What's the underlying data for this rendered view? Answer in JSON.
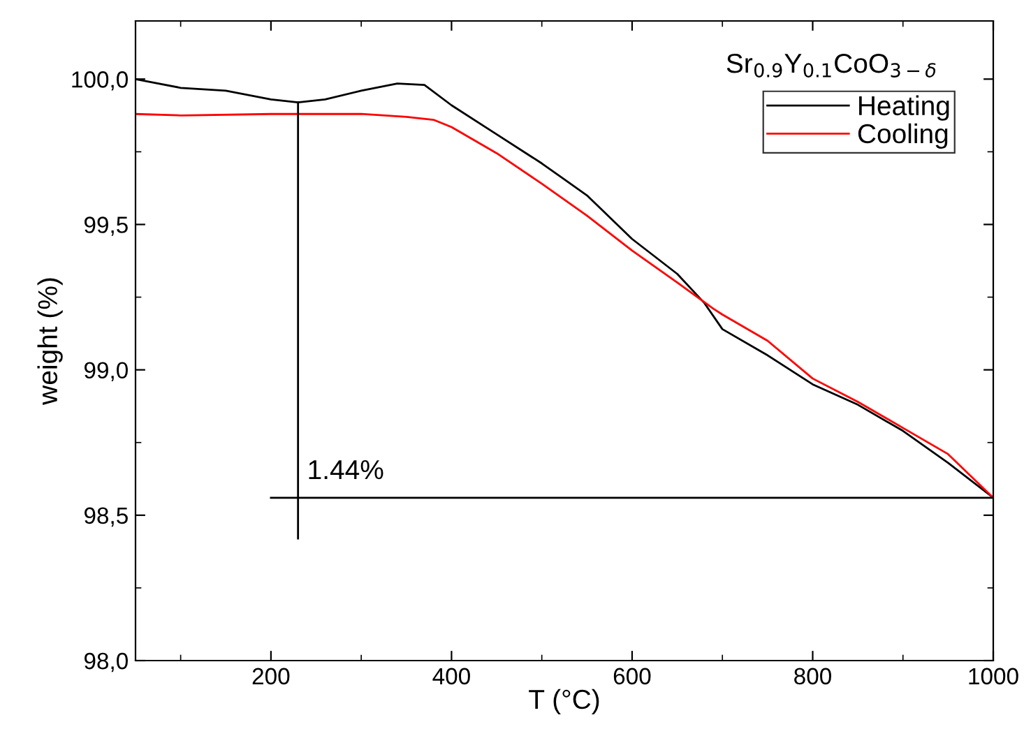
{
  "chart_data": {
    "type": "line",
    "title": "Sr$_{0.9}$Y$_{0.1}$CoO$_{3−δ}$",
    "xlabel": "T (°C)",
    "ylabel": "weight (%)",
    "xlim": [
      50,
      1000
    ],
    "ylim": [
      98.0,
      100.2
    ],
    "xticks": [
      200,
      400,
      600,
      800,
      1000
    ],
    "yticks": [
      {
        "value": 98.0,
        "label": "98,0"
      },
      {
        "value": 98.5,
        "label": "98,5"
      },
      {
        "value": 99.0,
        "label": "99,0"
      },
      {
        "value": 99.5,
        "label": "99,5"
      },
      {
        "value": 100.0,
        "label": "100,0"
      }
    ],
    "grid": false,
    "legend": "top right",
    "marker": "none",
    "line_style": "solid",
    "annotations": [
      "1.44%"
    ],
    "series": [
      {
        "name": "Heating",
        "color": "#000000",
        "x": [
          50,
          100,
          150,
          200,
          230,
          260,
          300,
          340,
          370,
          400,
          450,
          500,
          550,
          600,
          650,
          680,
          700,
          750,
          800,
          850,
          900,
          950,
          1000
        ],
        "values": [
          100.0,
          99.97,
          99.96,
          99.93,
          99.92,
          99.93,
          99.96,
          99.985,
          99.98,
          99.91,
          99.81,
          99.71,
          99.6,
          99.45,
          99.33,
          99.23,
          99.14,
          99.05,
          98.95,
          98.88,
          98.79,
          98.68,
          98.56
        ]
      },
      {
        "name": "Cooling",
        "color": "#ff0000",
        "x": [
          50,
          100,
          200,
          300,
          350,
          380,
          400,
          450,
          500,
          550,
          600,
          650,
          690,
          700,
          750,
          800,
          850,
          900,
          950,
          1000
        ],
        "values": [
          99.88,
          99.875,
          99.88,
          99.88,
          99.87,
          99.86,
          99.835,
          99.745,
          99.64,
          99.53,
          99.41,
          99.3,
          99.21,
          99.19,
          99.1,
          98.97,
          98.89,
          98.8,
          98.71,
          98.56
        ]
      },
      {
        "color": "#000000",
        "x": [
          230,
          230
        ],
        "values": [
          99.92,
          98.42
        ]
      },
      {
        "color": "#000000",
        "x": [
          200,
          1000
        ],
        "values": [
          98.56,
          98.56
        ]
      }
    ]
  }
}
